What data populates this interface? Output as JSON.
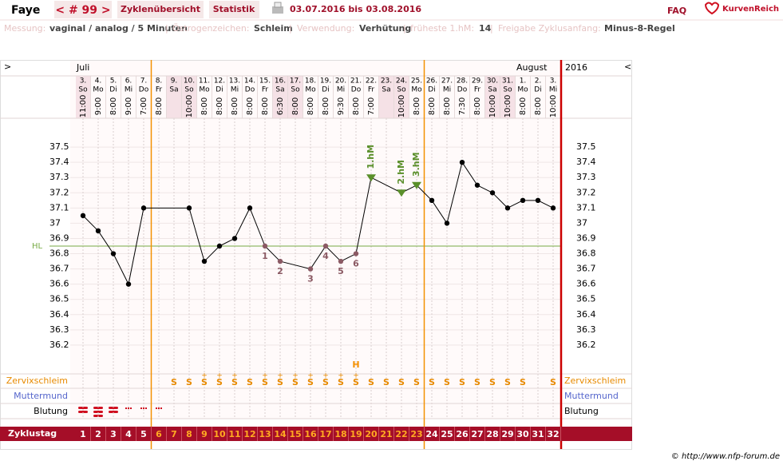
{
  "header": {
    "name": "Faye",
    "cycle": "< # 99 >",
    "tabs": [
      "Zyklenübersicht",
      "Statistik"
    ],
    "range": "03.07.2016 bis 03.08.2016",
    "faq": "FAQ",
    "brand": "KurvenReich"
  },
  "settings": [
    {
      "label": "Messung:",
      "value": "vaginal / analog / 5 Minuten"
    },
    {
      "label": "Östrogenzeichen:",
      "value": "Schleim"
    },
    {
      "label": "Verwendung:",
      "value": "Verhütung"
    },
    {
      "label": "früheste 1.hM:",
      "value": 14
    },
    {
      "label": "Freigabe Zyklusanfang:",
      "value": "Minus-8-Regel"
    }
  ],
  "separator": "|",
  "footer": "© http://www.nfp-forum.de",
  "chart_data": {
    "type": "line",
    "nav": [
      ">",
      "<"
    ],
    "months": [
      "Juli",
      "August"
    ],
    "year": "2016",
    "x": [
      1,
      2,
      3,
      4,
      5,
      6,
      7,
      8,
      9,
      10,
      11,
      12,
      13,
      14,
      15,
      16,
      17,
      18,
      19,
      20,
      21,
      22,
      23,
      24,
      25,
      26,
      27,
      28,
      29,
      30,
      31,
      32
    ],
    "xlim": [
      0.5,
      32.5
    ],
    "x_label": "Zyklustag",
    "dates": [
      "3.",
      "4.",
      "5.",
      "6.",
      "7.",
      "8.",
      "9.",
      "10.",
      "11.",
      "12.",
      "13.",
      "14.",
      "15.",
      "16.",
      "17.",
      "18.",
      "19.",
      "20.",
      "21.",
      "22.",
      "23.",
      "24.",
      "25.",
      "26.",
      "27.",
      "28.",
      "29.",
      "30.",
      "31.",
      "1.",
      "2.",
      "3."
    ],
    "weekdays": [
      "So",
      "Mo",
      "Di",
      "Mi",
      "Do",
      "Fr",
      "Sa",
      "So",
      "Mo",
      "Di",
      "Mi",
      "Do",
      "Fr",
      "Sa",
      "So",
      "Mo",
      "Di",
      "Mi",
      "Do",
      "Fr",
      "Sa",
      "So",
      "Mo",
      "Di",
      "Mi",
      "Do",
      "Fr",
      "Sa",
      "So",
      "Mo",
      "Di",
      "Mi"
    ],
    "times": [
      "11:00",
      "9:00",
      "8:00",
      "9:00",
      "7:00",
      "8:00",
      null,
      "10:00",
      "8:00",
      "8:00",
      "8:00",
      "8:00",
      "8:00",
      "6:30",
      "8:00",
      "8:00",
      "8:00",
      "9:30",
      "8:00",
      "7:00",
      null,
      "10:00",
      "8:00",
      "8:00",
      "8:00",
      "7:30",
      "8:00",
      "10:00",
      "10:00",
      "8:00",
      "8:00",
      "10:00"
    ],
    "values": [
      37.05,
      36.95,
      36.8,
      36.6,
      37.1,
      null,
      null,
      37.1,
      36.75,
      36.85,
      36.9,
      37.1,
      36.85,
      36.75,
      null,
      36.7,
      36.85,
      36.75,
      36.8,
      37.3,
      null,
      37.2,
      37.25,
      37.15,
      37.0,
      37.4,
      37.25,
      37.2,
      37.1,
      37.15,
      37.15,
      37.1
    ],
    "color": "#000000",
    "ylim": [
      36.0,
      37.7
    ],
    "yticks": [
      36.2,
      36.3,
      36.4,
      36.5,
      36.6,
      36.7,
      36.8,
      36.9,
      37,
      37.1,
      37.2,
      37.3,
      37.4,
      37.5
    ],
    "grid": true,
    "hl": {
      "label": "HL",
      "value": 36.85,
      "color": "#77aa44"
    },
    "low_labels": [
      {
        "n": 1,
        "day": 13
      },
      {
        "n": 2,
        "day": 14
      },
      {
        "n": 3,
        "day": 16
      },
      {
        "n": 4,
        "day": 17
      },
      {
        "n": 5,
        "day": 18
      },
      {
        "n": 6,
        "day": 19
      }
    ],
    "low_color": "#8b5a64",
    "peak_markers": [
      {
        "label": "1.hM",
        "day": 20
      },
      {
        "label": "2.hM",
        "day": 22
      },
      {
        "label": "3.hM",
        "day": 23
      }
    ],
    "marker_color": "#5a8f2a",
    "peak": {
      "label": "H",
      "day": 19
    },
    "phase_lines": [
      5.5,
      23.5
    ],
    "phase_color": "#f39000",
    "rows": [
      {
        "label": "Zervixschleim",
        "color": "#e88a00"
      },
      {
        "label": "Muttermund",
        "color": "#5566cc"
      },
      {
        "label": "Blutung",
        "color": "#000000"
      }
    ],
    "cervix": [
      null,
      null,
      null,
      null,
      null,
      null,
      "S",
      "S",
      "S",
      "S",
      "S",
      "S",
      "S",
      "S",
      "S",
      "S",
      "S",
      "S",
      "S",
      "S",
      "S",
      "S",
      "S",
      "S",
      "S",
      "S",
      "S",
      "S",
      "S",
      "S",
      null,
      "S"
    ],
    "cervix_plus": [
      null,
      null,
      null,
      null,
      null,
      null,
      null,
      null,
      "+",
      "+",
      "+",
      null,
      "+",
      "+",
      "+",
      "+",
      "+",
      "+",
      "+",
      null,
      null,
      null,
      null,
      null,
      null,
      null,
      null,
      null,
      null,
      null,
      null,
      null
    ]
  }
}
